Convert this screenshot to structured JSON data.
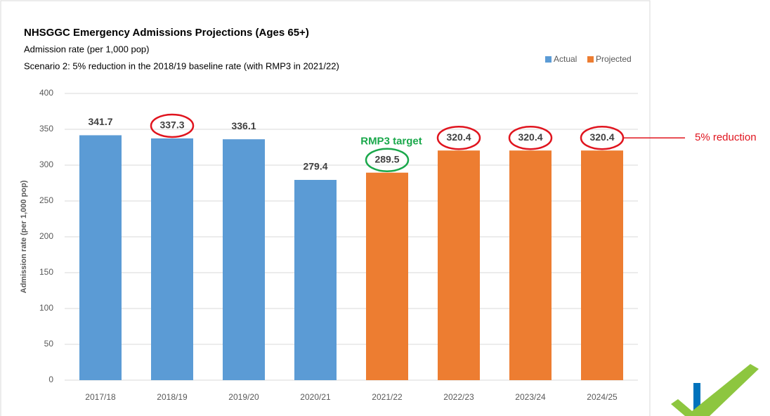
{
  "chart_data": {
    "type": "bar",
    "title": "NHSGGC Emergency Admissions Projections (Ages 65+)",
    "subtitle": "Admission rate (per 1,000 pop)",
    "subtitle2": "Scenario 2: 5% reduction in the 2018/19 baseline rate (with RMP3 in 2021/22)",
    "y_label": "Admission rate (per 1,000 pop)",
    "annotations": [
      "RMP3 target",
      "5% reduction"
    ],
    "categories": [
      "2017/18",
      "2018/19",
      "2019/20",
      "2020/21",
      "2021/22",
      "2022/23",
      "2023/24",
      "2024/25"
    ],
    "series": [
      {
        "name": "Actual",
        "color": "#5b9bd5",
        "values": [
          341.7,
          337.3,
          336.1,
          279.4,
          null,
          null,
          null,
          null
        ]
      },
      {
        "name": "Projected",
        "color": "#ed7d31",
        "values": [
          null,
          null,
          null,
          null,
          289.5,
          320.4,
          320.4,
          320.4
        ]
      }
    ],
    "ylim": [
      0,
      400
    ],
    "yticks": [
      0,
      50,
      100,
      150,
      200,
      250,
      300,
      350,
      400
    ],
    "grid": true,
    "legend": "top-right"
  }
}
